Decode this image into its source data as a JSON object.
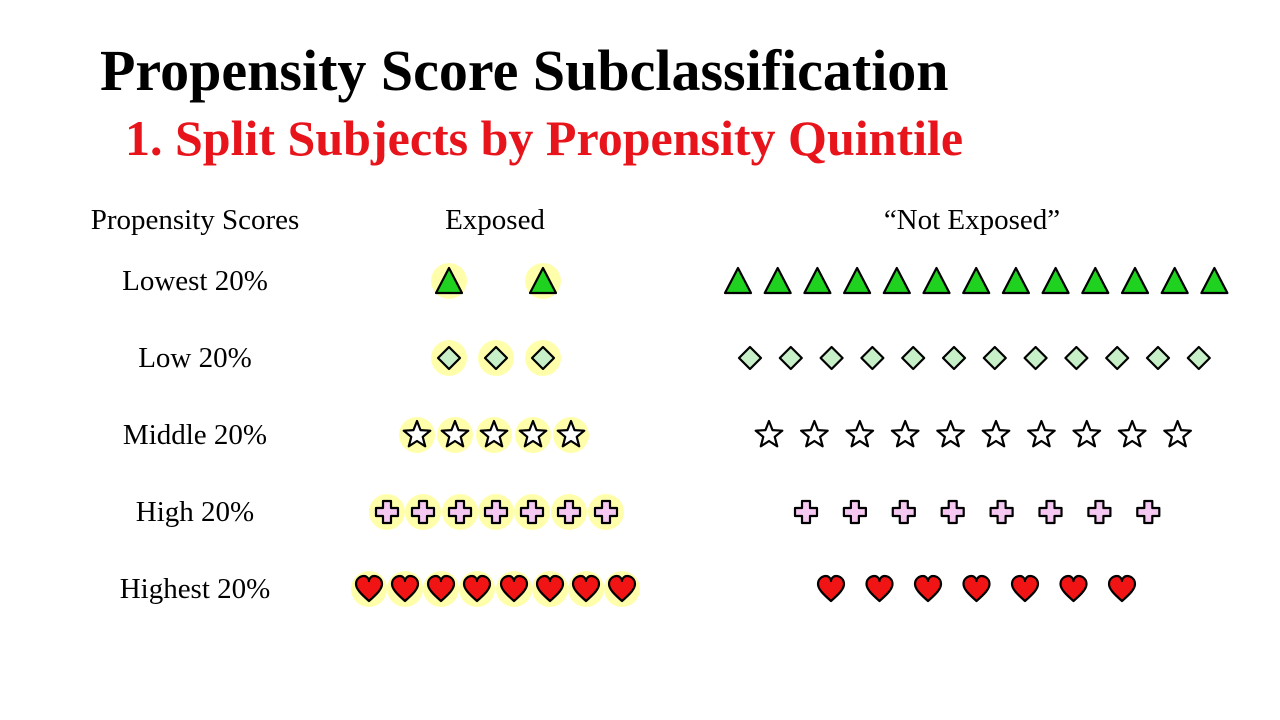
{
  "title": "Propensity Score Subclassification",
  "subtitle": "1. Split Subjects by Propensity Quintile",
  "headers": {
    "scores": "Propensity Scores",
    "exposed": "Exposed",
    "not_exposed": "“Not Exposed”"
  },
  "colors": {
    "subtitle": "#e8141b",
    "highlight": "#ffff66",
    "triangle": "#1fd21f",
    "diamond": "#c8f0c8",
    "star": "#ffffff",
    "cross": "#f4c8f0",
    "heart": "#f01414"
  },
  "quintiles": [
    {
      "label": "Lowest 20%",
      "shape": "triangle-icon",
      "exposed_count": 2,
      "not_exposed_count": 13
    },
    {
      "label": "Low 20%",
      "shape": "diamond-icon",
      "exposed_count": 3,
      "not_exposed_count": 12
    },
    {
      "label": "Middle 20%",
      "shape": "star-icon",
      "exposed_count": 5,
      "not_exposed_count": 10
    },
    {
      "label": "High 20%",
      "shape": "cross-icon",
      "exposed_count": 7,
      "not_exposed_count": 8
    },
    {
      "label": "Highest 20%",
      "shape": "heart-icon",
      "exposed_count": 8,
      "not_exposed_count": 7
    }
  ]
}
